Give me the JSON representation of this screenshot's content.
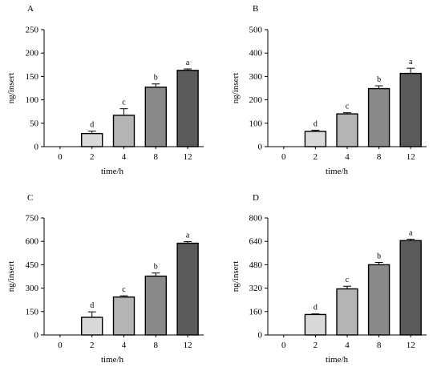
{
  "colors": {
    "axis": "#000000",
    "bar_stroke": "#000000",
    "bar_fills": [
      "#ffffff",
      "#d9d9d9",
      "#b4b4b4",
      "#8a8a8a",
      "#5a5a5a"
    ]
  },
  "chart_data": [
    {
      "panel": "A",
      "type": "bar",
      "categories": [
        "0",
        "2",
        "4",
        "8",
        "12"
      ],
      "values": [
        0,
        28,
        67,
        127,
        163
      ],
      "errors": [
        0,
        5,
        14,
        7,
        3
      ],
      "letters": [
        "",
        "d",
        "c",
        "b",
        "a"
      ],
      "ticks": [
        "0",
        "50",
        "100",
        "150",
        "200",
        "250"
      ],
      "ylim": [
        0,
        250
      ],
      "ylabel": "ng/insert",
      "xlabel": "time/h",
      "grid": false
    },
    {
      "panel": "B",
      "type": "bar",
      "categories": [
        "0",
        "2",
        "4",
        "8",
        "12"
      ],
      "values": [
        0,
        65,
        140,
        248,
        313
      ],
      "errors": [
        0,
        5,
        5,
        12,
        22
      ],
      "letters": [
        "",
        "d",
        "c",
        "b",
        "a"
      ],
      "ticks": [
        "0",
        "100",
        "200",
        "300",
        "400",
        "500"
      ],
      "ylim": [
        0,
        500
      ],
      "ylabel": "ng/insert",
      "xlabel": "time/h",
      "grid": false
    },
    {
      "panel": "C",
      "type": "bar",
      "categories": [
        "0",
        "2",
        "4",
        "8",
        "12"
      ],
      "values": [
        0,
        113,
        243,
        377,
        588
      ],
      "errors": [
        0,
        35,
        8,
        20,
        10
      ],
      "letters": [
        "",
        "d",
        "c",
        "b",
        "a"
      ],
      "ticks": [
        "0",
        "150",
        "300",
        "450",
        "600",
        "750"
      ],
      "ylim": [
        0,
        750
      ],
      "ylabel": "ng/insert",
      "xlabel": "time/h",
      "grid": false
    },
    {
      "panel": "D",
      "type": "bar",
      "categories": [
        "0",
        "2",
        "4",
        "8",
        "12"
      ],
      "values": [
        0,
        140,
        315,
        480,
        645
      ],
      "errors": [
        0,
        4,
        18,
        16,
        10
      ],
      "letters": [
        "",
        "d",
        "c",
        "b",
        "a"
      ],
      "ticks": [
        "0",
        "160",
        "320",
        "480",
        "640",
        "800"
      ],
      "ylim": [
        0,
        800
      ],
      "ylabel": "ng/insert",
      "xlabel": "time/h",
      "grid": false
    }
  ]
}
